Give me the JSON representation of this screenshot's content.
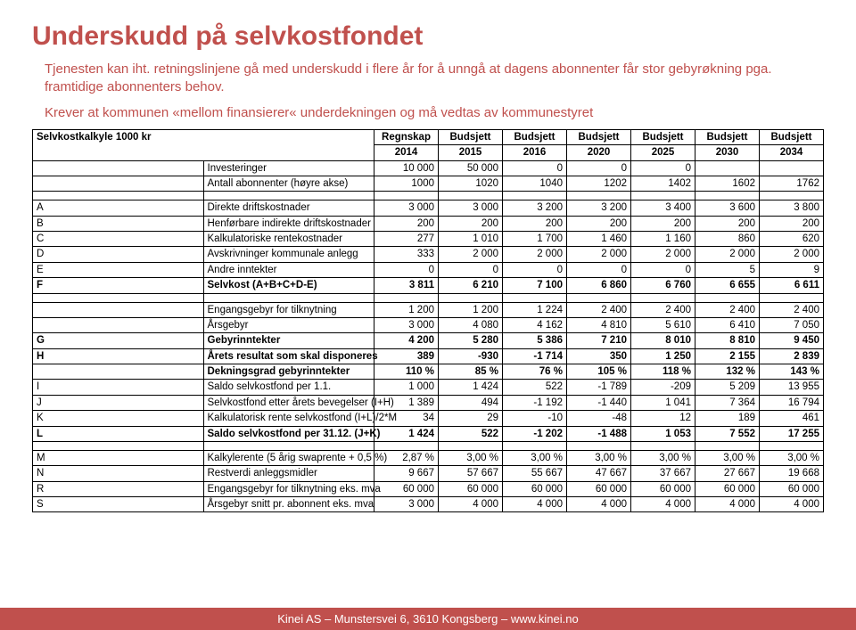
{
  "title": "Underskudd på selvkostfondet",
  "paragraphs": [
    "Tjenesten kan iht. retningslinjene gå med underskudd i flere år for å unngå at dagens abonnenter får stor gebyrøkning pga. framtidige abonnenters behov.",
    "Krever at kommunen «mellom finansierer« underdekningen og må vedtas av kommunestyret"
  ],
  "table": {
    "header_label": "Selvkostkalkyle 1000 kr",
    "columns": [
      {
        "l1": "Regnskap",
        "l2": "2014"
      },
      {
        "l1": "Budsjett",
        "l2": "2015"
      },
      {
        "l1": "Budsjett",
        "l2": "2016"
      },
      {
        "l1": "Budsjett",
        "l2": "2020"
      },
      {
        "l1": "Budsjett",
        "l2": "2025"
      },
      {
        "l1": "Budsjett",
        "l2": "2030"
      },
      {
        "l1": "Budsjett",
        "l2": "2034"
      }
    ],
    "sections": [
      {
        "rows": [
          {
            "letter": "",
            "label": "Investeringer",
            "v": [
              "10 000",
              "50 000",
              "0",
              "0",
              "0",
              "",
              ""
            ],
            "bold": false
          },
          {
            "letter": "",
            "label": "Antall abonnenter (høyre akse)",
            "v": [
              "1000",
              "1020",
              "1040",
              "1202",
              "1402",
              "1602",
              "1762"
            ],
            "bold": false
          }
        ]
      },
      {
        "rows": [
          {
            "letter": "A",
            "label": "Direkte driftskostnader",
            "v": [
              "3 000",
              "3 000",
              "3 200",
              "3 200",
              "3 400",
              "3 600",
              "3 800"
            ],
            "bold": false
          },
          {
            "letter": "B",
            "label": "Henførbare indirekte driftskostnader",
            "v": [
              "200",
              "200",
              "200",
              "200",
              "200",
              "200",
              "200"
            ],
            "bold": false
          },
          {
            "letter": "C",
            "label": "Kalkulatoriske rentekostnader",
            "v": [
              "277",
              "1 010",
              "1 700",
              "1 460",
              "1 160",
              "860",
              "620"
            ],
            "bold": false
          },
          {
            "letter": "D",
            "label": "Avskrivninger kommunale anlegg",
            "v": [
              "333",
              "2 000",
              "2 000",
              "2 000",
              "2 000",
              "2 000",
              "2 000"
            ],
            "bold": false
          },
          {
            "letter": "E",
            "label": "Andre inntekter",
            "v": [
              "0",
              "0",
              "0",
              "0",
              "0",
              "5",
              "9"
            ],
            "bold": false
          },
          {
            "letter": "F",
            "label": "Selvkost (A+B+C+D-E)",
            "v": [
              "3 811",
              "6 210",
              "7 100",
              "6 860",
              "6 760",
              "6 655",
              "6 611"
            ],
            "bold": true
          }
        ]
      },
      {
        "rows": [
          {
            "letter": "",
            "label": "Engangsgebyr for tilknytning",
            "v": [
              "1 200",
              "1 200",
              "1 224",
              "2 400",
              "2 400",
              "2 400",
              "2 400"
            ],
            "bold": false
          },
          {
            "letter": "",
            "label": "Årsgebyr",
            "v": [
              "3 000",
              "4 080",
              "4 162",
              "4 810",
              "5 610",
              "6 410",
              "7 050"
            ],
            "bold": false
          },
          {
            "letter": "G",
            "label": "Gebyrinntekter",
            "v": [
              "4 200",
              "5 280",
              "5 386",
              "7 210",
              "8 010",
              "8 810",
              "9 450"
            ],
            "bold": true
          },
          {
            "letter": "H",
            "label": "Årets resultat som skal disponeres",
            "v": [
              "389",
              "-930",
              "-1 714",
              "350",
              "1 250",
              "2 155",
              "2 839"
            ],
            "bold": true
          },
          {
            "letter": "",
            "label": "Dekningsgrad gebyrinntekter",
            "v": [
              "110 %",
              "85 %",
              "76 %",
              "105 %",
              "118 %",
              "132 %",
              "143 %"
            ],
            "bold": true
          },
          {
            "letter": "I",
            "label": "Saldo selvkostfond per 1.1.",
            "v": [
              "1 000",
              "1 424",
              "522",
              "-1 789",
              "-209",
              "5 209",
              "13 955"
            ],
            "bold": false
          },
          {
            "letter": "J",
            "label": "Selvkostfond etter årets bevegelser (I+H)",
            "v": [
              "1 389",
              "494",
              "-1 192",
              "-1 440",
              "1 041",
              "7 364",
              "16 794"
            ],
            "bold": false
          },
          {
            "letter": "K",
            "label": "Kalkulatorisk rente selvkostfond (I+L)/2*M",
            "v": [
              "34",
              "29",
              "-10",
              "-48",
              "12",
              "189",
              "461"
            ],
            "bold": false
          },
          {
            "letter": "L",
            "label": "Saldo selvkostfond per 31.12. (J+K)",
            "v": [
              "1 424",
              "522",
              "-1 202",
              "-1 488",
              "1 053",
              "7 552",
              "17 255"
            ],
            "bold": true
          }
        ]
      },
      {
        "rows": [
          {
            "letter": "M",
            "label": "Kalkylerente (5 årig swaprente + 0,5 %)",
            "v": [
              "2,87 %",
              "3,00 %",
              "3,00 %",
              "3,00 %",
              "3,00 %",
              "3,00 %",
              "3,00 %"
            ],
            "bold": false
          },
          {
            "letter": "N",
            "label": "Restverdi anleggsmidler",
            "v": [
              "9 667",
              "57 667",
              "55 667",
              "47 667",
              "37 667",
              "27 667",
              "19 668"
            ],
            "bold": false
          },
          {
            "letter": "R",
            "label": "Engangsgebyr for tilknytning eks. mva",
            "v": [
              "60 000",
              "60 000",
              "60 000",
              "60 000",
              "60 000",
              "60 000",
              "60 000"
            ],
            "bold": false
          },
          {
            "letter": "S",
            "label": "Årsgebyr snitt pr. abonnent eks. mva",
            "v": [
              "3 000",
              "4 000",
              "4 000",
              "4 000",
              "4 000",
              "4 000",
              "4 000"
            ],
            "bold": false
          }
        ]
      }
    ]
  },
  "footer": "Kinei AS – Munstersvei 6, 3610 Kongsberg – www.kinei.no"
}
